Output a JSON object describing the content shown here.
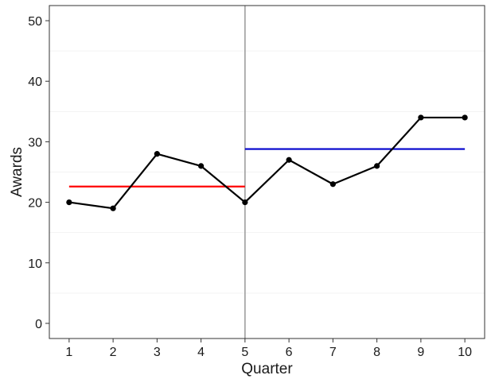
{
  "chart_data": {
    "type": "line",
    "xlabel": "Quarter",
    "ylabel": "Awards",
    "x": [
      1,
      2,
      3,
      4,
      5,
      6,
      7,
      8,
      9,
      10
    ],
    "series": [
      {
        "values": [
          20,
          19,
          28,
          26,
          20,
          27,
          23,
          26,
          34,
          34
        ],
        "color": "#000000",
        "markers": true
      }
    ],
    "reference_segments": [
      {
        "x_start": 1,
        "x_end": 5,
        "y": 22.6,
        "color": "#ff0000"
      },
      {
        "x_start": 5,
        "x_end": 10,
        "y": 28.8,
        "color": "#0000cc"
      }
    ],
    "vertical_line": {
      "x": 5,
      "color": "#9e9e9e"
    },
    "xlim": [
      0.55,
      10.45
    ],
    "ylim": [
      -2.5,
      52.5
    ],
    "xticks": [
      1,
      2,
      3,
      4,
      5,
      6,
      7,
      8,
      9,
      10
    ],
    "yticks": [
      0,
      10,
      20,
      30,
      40,
      50
    ],
    "minor_gridlines_y": [
      5,
      15,
      25,
      35,
      45
    ],
    "grid": "faint horizontal minor gridlines",
    "legend": "none"
  }
}
